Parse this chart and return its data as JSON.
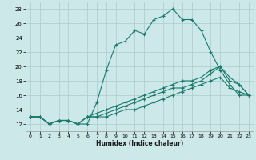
{
  "xlabel": "Humidex (Indice chaleur)",
  "background_color": "#cce8e8",
  "grid_color": "#aacccc",
  "line_color": "#1a7a6e",
  "xlim": [
    -0.5,
    23.5
  ],
  "ylim": [
    11,
    29
  ],
  "xticks": [
    0,
    1,
    2,
    3,
    4,
    5,
    6,
    7,
    8,
    9,
    10,
    11,
    12,
    13,
    14,
    15,
    16,
    17,
    18,
    19,
    20,
    21,
    22,
    23
  ],
  "yticks": [
    12,
    14,
    16,
    18,
    20,
    22,
    24,
    26,
    28
  ],
  "series": [
    {
      "x": [
        0,
        1,
        2,
        3,
        4,
        5,
        6,
        7,
        8,
        9,
        10,
        11,
        12,
        13,
        14,
        15,
        16,
        17,
        18,
        19,
        20,
        21,
        22,
        23
      ],
      "y": [
        13,
        13,
        12,
        12.5,
        12.5,
        12,
        12,
        15,
        19.5,
        23,
        23.5,
        25,
        24.5,
        26.5,
        27,
        28,
        26.5,
        26.5,
        25,
        22,
        19.5,
        17.5,
        16,
        16
      ]
    },
    {
      "x": [
        0,
        1,
        2,
        3,
        4,
        5,
        6,
        7,
        8,
        9,
        10,
        11,
        12,
        13,
        14,
        15,
        16,
        17,
        18,
        19,
        20,
        21,
        22,
        23
      ],
      "y": [
        13,
        13,
        12,
        12.5,
        12.5,
        12,
        13,
        13,
        13.5,
        14,
        14.5,
        15,
        15.5,
        16,
        16.5,
        17,
        17,
        17.5,
        18,
        19,
        20,
        18,
        17.5,
        16
      ]
    },
    {
      "x": [
        0,
        1,
        2,
        3,
        4,
        5,
        6,
        7,
        8,
        9,
        10,
        11,
        12,
        13,
        14,
        15,
        16,
        17,
        18,
        19,
        20,
        21,
        22,
        23
      ],
      "y": [
        13,
        13,
        12,
        12.5,
        12.5,
        12,
        13,
        13.5,
        14,
        14.5,
        15,
        15.5,
        16,
        16.5,
        17,
        17.5,
        18,
        18,
        18.5,
        19.5,
        20,
        18.5,
        17.5,
        16
      ]
    },
    {
      "x": [
        0,
        1,
        2,
        3,
        4,
        5,
        6,
        7,
        8,
        9,
        10,
        11,
        12,
        13,
        14,
        15,
        16,
        17,
        18,
        19,
        20,
        21,
        22,
        23
      ],
      "y": [
        13,
        13,
        12,
        12.5,
        12.5,
        12,
        13,
        13,
        13,
        13.5,
        14,
        14,
        14.5,
        15,
        15.5,
        16,
        16.5,
        17,
        17.5,
        18,
        18.5,
        17,
        16.5,
        16
      ]
    }
  ]
}
